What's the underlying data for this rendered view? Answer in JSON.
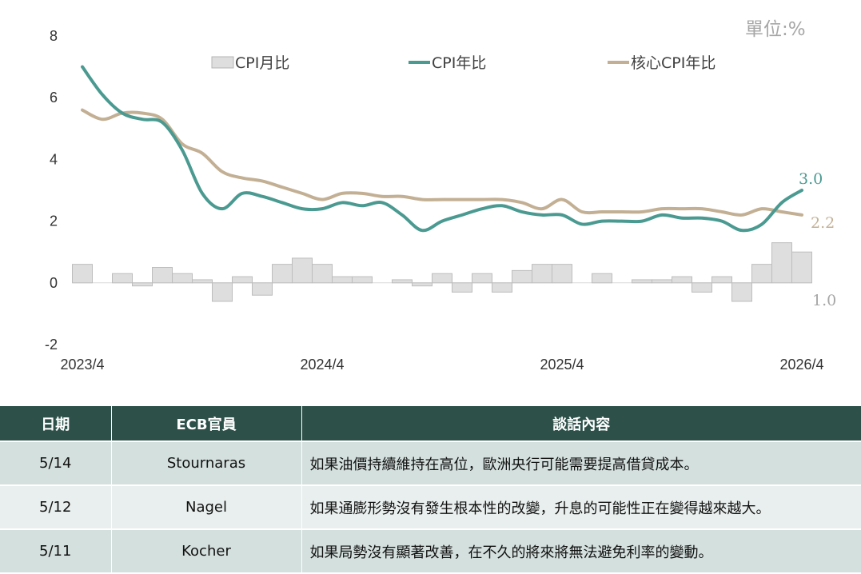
{
  "unit_label": "單位:%",
  "chart_data": {
    "type": "bar+line",
    "x_tick_labels": [
      "2023/4",
      "2024/4",
      "2025/4",
      "2026/4"
    ],
    "months": [
      "2023/4",
      "2023/5",
      "2023/6",
      "2023/7",
      "2023/8",
      "2023/9",
      "2023/10",
      "2023/11",
      "2023/12",
      "2024/1",
      "2024/2",
      "2024/3",
      "2024/4",
      "2024/5",
      "2024/6",
      "2024/7",
      "2024/8",
      "2024/9",
      "2024/10",
      "2024/11",
      "2024/12",
      "2025/1",
      "2025/2",
      "2025/3",
      "2025/4",
      "2025/5",
      "2025/6",
      "2025/7",
      "2025/8",
      "2025/9",
      "2025/10",
      "2025/11",
      "2025/12",
      "2026/1",
      "2026/2",
      "2026/3",
      "2026/4"
    ],
    "ylim": [
      -2,
      8
    ],
    "y_ticks": [
      -2,
      0,
      2,
      4,
      6,
      8
    ],
    "legend_position": "top",
    "series": [
      {
        "name": "CPI月比",
        "type": "bar",
        "color": "#dedede",
        "values": [
          0.6,
          null,
          0.3,
          -0.1,
          0.5,
          0.3,
          0.1,
          -0.6,
          0.2,
          -0.4,
          0.6,
          0.8,
          0.6,
          0.2,
          0.2,
          null,
          0.1,
          -0.1,
          0.3,
          -0.3,
          0.3,
          -0.3,
          0.4,
          0.6,
          0.6,
          null,
          0.3,
          null,
          0.1,
          0.1,
          0.2,
          -0.3,
          0.2,
          -0.6,
          0.6,
          1.3,
          1.0
        ]
      },
      {
        "name": "CPI年比",
        "type": "line",
        "color": "#4a9a91",
        "values": [
          7.0,
          6.1,
          5.5,
          5.3,
          5.2,
          4.3,
          2.9,
          2.4,
          2.9,
          2.8,
          2.6,
          2.4,
          2.4,
          2.6,
          2.5,
          2.6,
          2.2,
          1.7,
          2.0,
          2.2,
          2.4,
          2.5,
          2.3,
          2.2,
          2.2,
          1.9,
          2.0,
          2.0,
          2.0,
          2.2,
          2.1,
          2.1,
          2.0,
          1.7,
          1.9,
          2.6,
          3.0
        ]
      },
      {
        "name": "核心CPI年比",
        "type": "line",
        "color": "#c3b094",
        "values": [
          5.6,
          5.3,
          5.5,
          5.5,
          5.3,
          4.5,
          4.2,
          3.6,
          3.4,
          3.3,
          3.1,
          2.9,
          2.7,
          2.9,
          2.9,
          2.8,
          2.8,
          2.7,
          2.7,
          2.7,
          2.7,
          2.7,
          2.6,
          2.4,
          2.7,
          2.3,
          2.3,
          2.3,
          2.3,
          2.4,
          2.4,
          2.4,
          2.3,
          2.2,
          2.4,
          2.3,
          2.2
        ]
      }
    ],
    "end_labels": [
      {
        "series": "CPI年比",
        "text": "3.0"
      },
      {
        "series": "核心CPI年比",
        "text": "2.2"
      },
      {
        "series": "CPI月比",
        "text": "1.0"
      }
    ]
  },
  "table": {
    "headers": [
      "日期",
      "ECB官員",
      "談話內容"
    ],
    "rows": [
      {
        "date": "5/14",
        "official": "Stournaras",
        "content": "如果油價持續維持在高位，歐洲央行可能需要提高借貸成本。"
      },
      {
        "date": "5/12",
        "official": "Nagel",
        "content": "如果通膨形勢沒有發生根本性的改變，升息的可能性正在變得越來越大。"
      },
      {
        "date": "5/11",
        "official": "Kocher",
        "content": "如果局勢沒有顯著改善，在不久的將來將無法避免利率的變動。"
      }
    ]
  }
}
